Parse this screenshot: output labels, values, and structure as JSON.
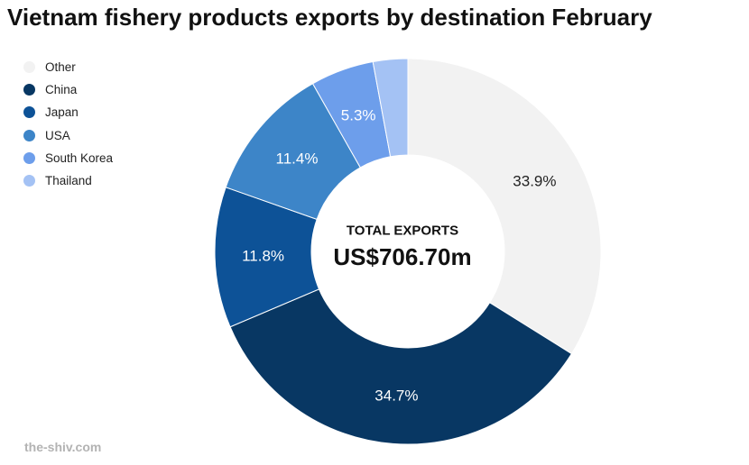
{
  "chart_data": {
    "type": "pie",
    "title": "Vietnam fishery products exports by destination February",
    "center_label": "TOTAL EXPORTS",
    "center_value": "US$706.70m",
    "legend_position": "top-left",
    "slices": [
      {
        "name": "Other",
        "value": 33.9,
        "label": "33.9%",
        "color": "#f2f2f2",
        "label_color": "#222222"
      },
      {
        "name": "China",
        "value": 34.7,
        "label": "34.7%",
        "color": "#083763",
        "label_color": "#ffffff"
      },
      {
        "name": "Japan",
        "value": 11.8,
        "label": "11.8%",
        "color": "#0d5297",
        "label_color": "#ffffff"
      },
      {
        "name": "USA",
        "value": 11.4,
        "label": "11.4%",
        "color": "#3d85c8",
        "label_color": "#ffffff"
      },
      {
        "name": "South Korea",
        "value": 5.3,
        "label": "5.3%",
        "color": "#6d9eeb",
        "label_color": "#ffffff"
      },
      {
        "name": "Thailand",
        "value": 2.9,
        "label": "",
        "color": "#a4c2f4",
        "label_color": "#ffffff"
      }
    ]
  },
  "watermark": "the-shiv.com"
}
